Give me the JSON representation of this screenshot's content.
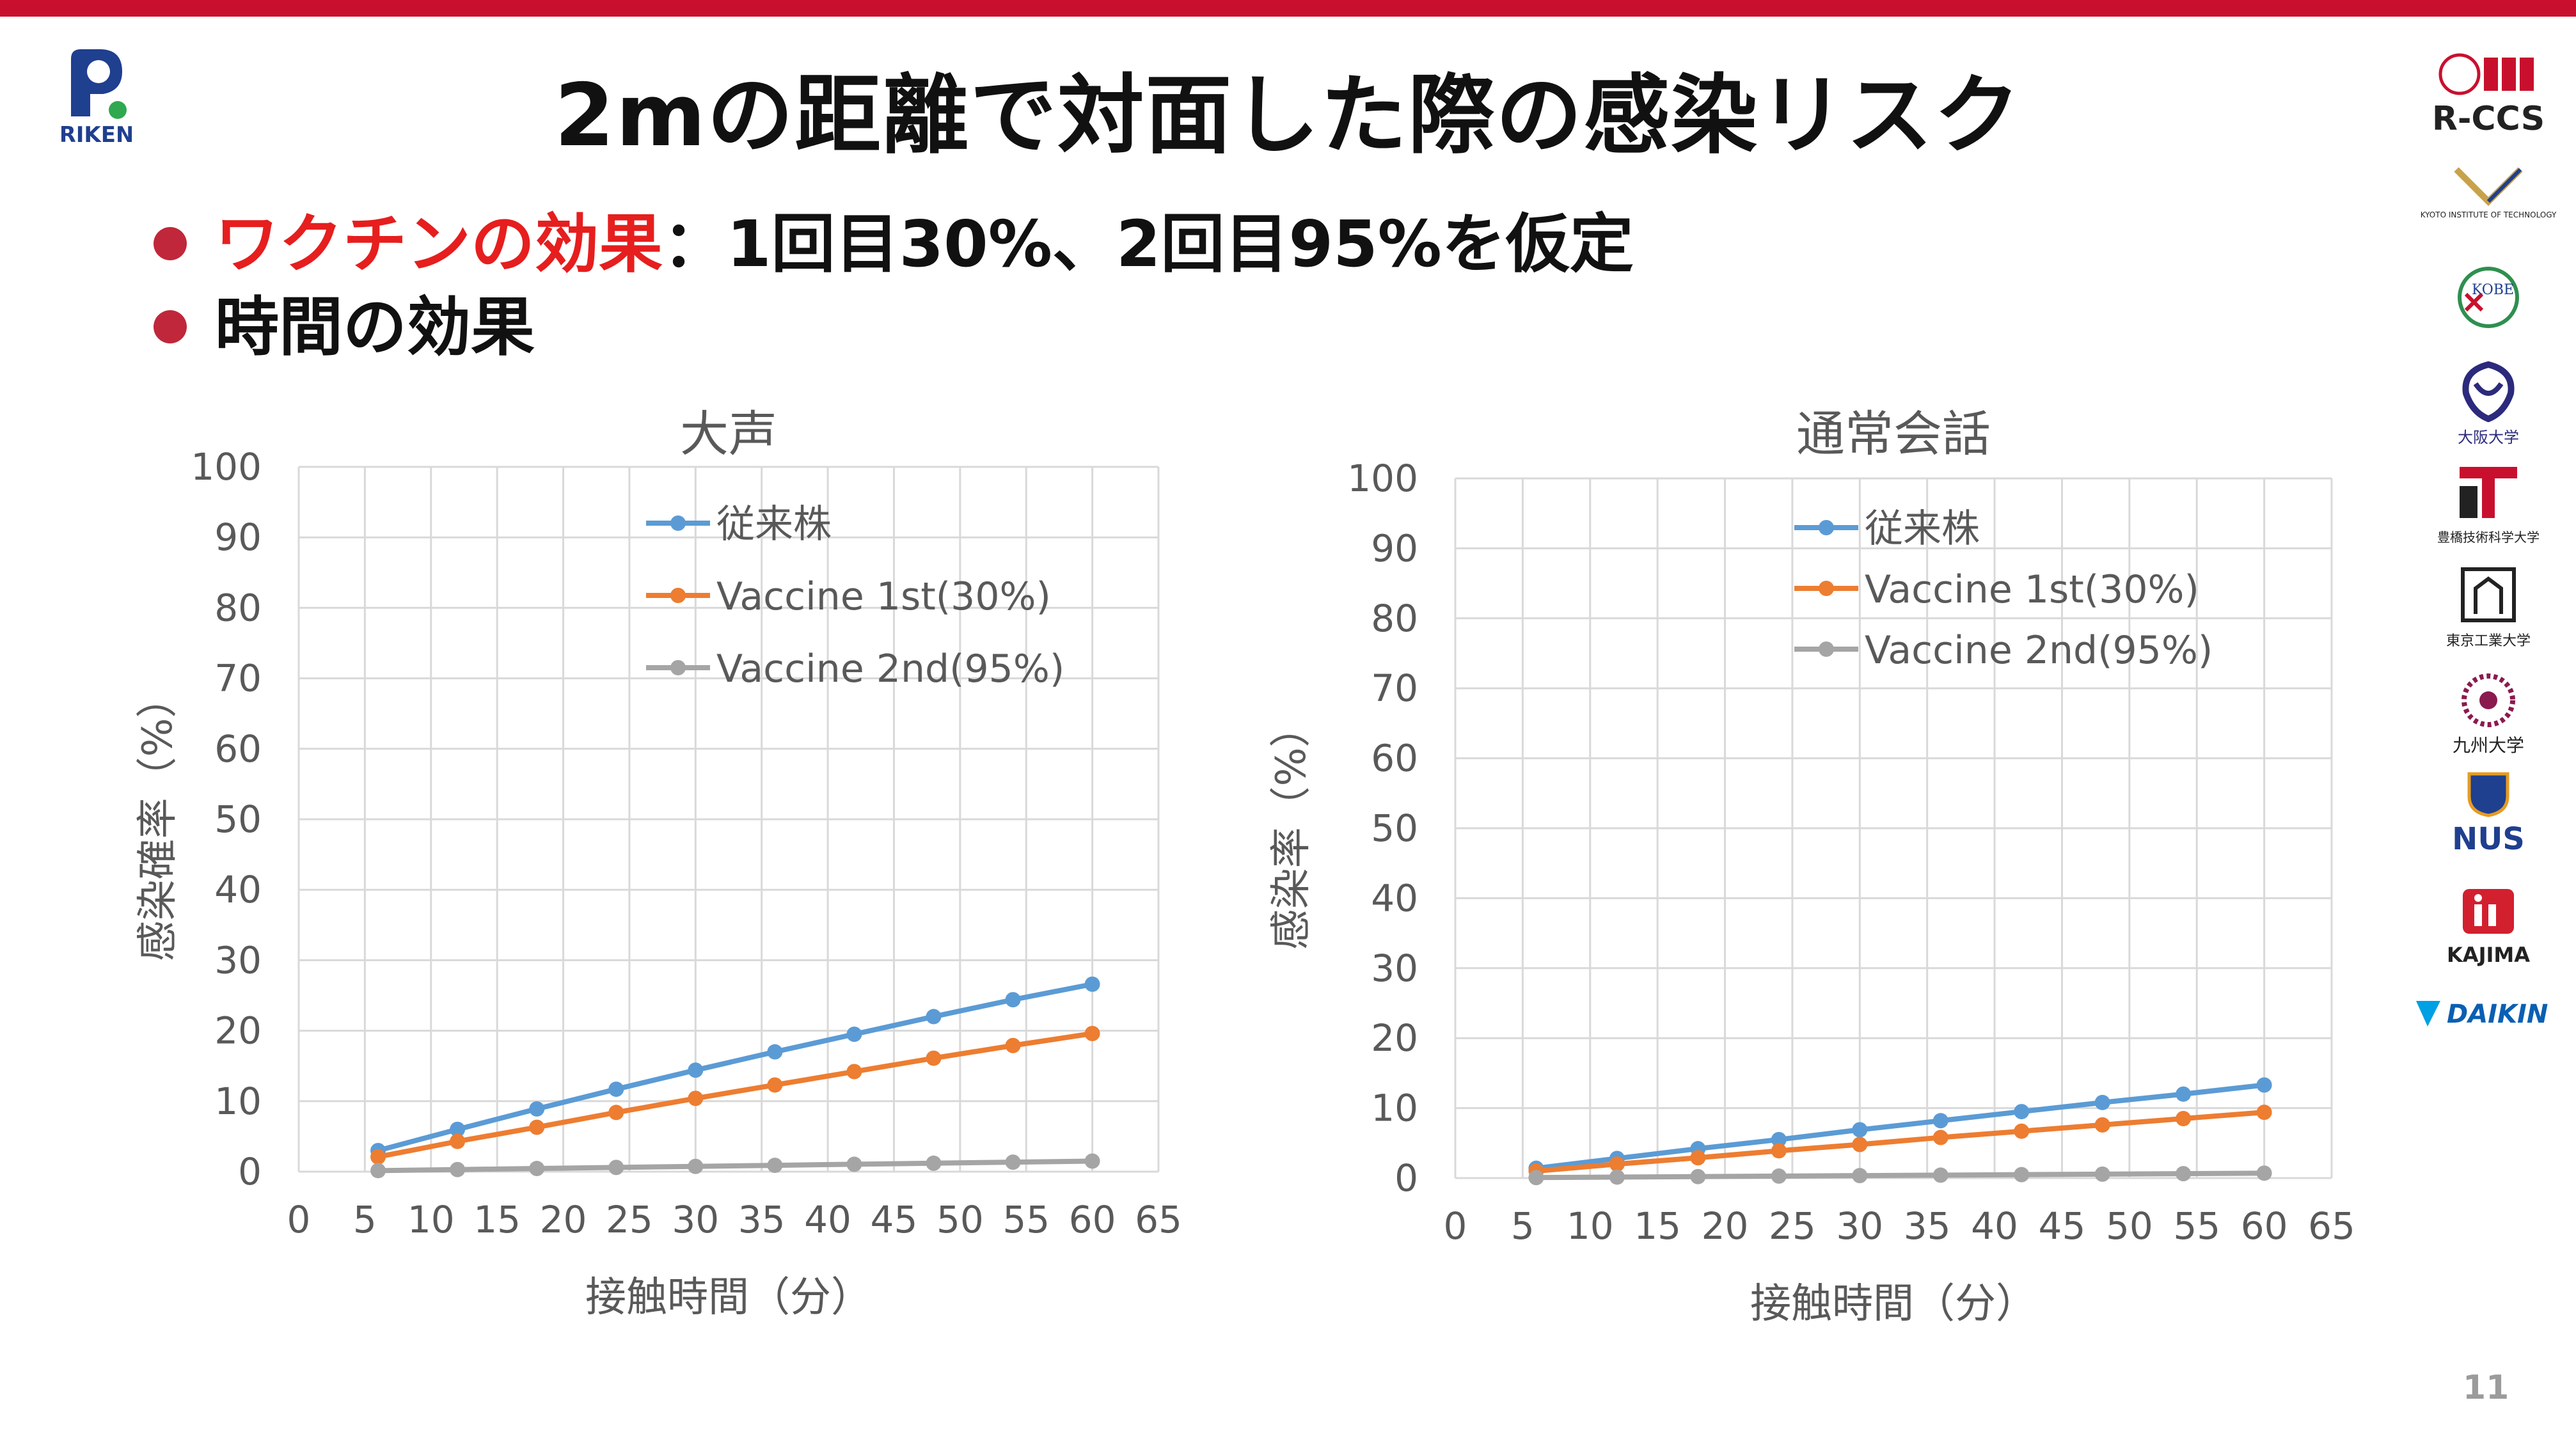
{
  "slide": {
    "title": "2mの距離で対面した際の感染リスク",
    "bullets": [
      {
        "accent": "ワクチンの効果",
        "rest": "：1回目30%、2回目95%を仮定"
      },
      {
        "accent": "",
        "rest": "時間の効果"
      }
    ],
    "page_number": "11",
    "riken_logo_text": "RIKEN"
  },
  "partners": [
    {
      "name": "R-CCS",
      "text": "R-CCS"
    },
    {
      "name": "kyoto-institute-of-technology",
      "text": "KYOTO INSTITUTE OF TECHNOLOGY"
    },
    {
      "name": "kobe-university",
      "text": "KOBE"
    },
    {
      "name": "osaka-university",
      "text": "大阪大学"
    },
    {
      "name": "toyohashi-tech",
      "text": "豊橋技術科学大学"
    },
    {
      "name": "tokyo-tech",
      "text": "東京工業大学"
    },
    {
      "name": "kyushu-university",
      "text": "九州大学"
    },
    {
      "name": "nus",
      "text": "NUS"
    },
    {
      "name": "kajima",
      "text": "KAJIMA"
    },
    {
      "name": "daikin",
      "text": "DAIKIN"
    }
  ],
  "colors": {
    "series": [
      "#5b9bd5",
      "#ed7d31",
      "#a5a5a5"
    ],
    "top_bar": "#c8102e",
    "accent_text": "#e61e1e"
  },
  "chart_data": [
    {
      "type": "line",
      "title": "大声",
      "xlabel": "接触時間（分）",
      "ylabel": "感染確率（%）",
      "xlim": [
        0,
        65
      ],
      "ylim": [
        0,
        100
      ],
      "xticks": [
        "0",
        "5",
        "10",
        "15",
        "20",
        "25",
        "30",
        "35",
        "40",
        "45",
        "50",
        "55",
        "60",
        "65"
      ],
      "yticks": [
        "0",
        "10",
        "20",
        "30",
        "40",
        "50",
        "60",
        "70",
        "80",
        "90",
        "100"
      ],
      "grid": true,
      "legend": "top-center",
      "x": [
        6,
        12,
        18,
        24,
        30,
        36,
        42,
        48,
        54,
        60
      ],
      "series": [
        {
          "name": "従来株",
          "values": [
            3.0,
            6.0,
            8.9,
            11.7,
            14.4,
            17.0,
            19.5,
            22.0,
            24.4,
            26.6
          ]
        },
        {
          "name": "Vaccine 1st(30%)",
          "values": [
            2.1,
            4.3,
            6.3,
            8.4,
            10.4,
            12.3,
            14.2,
            16.1,
            17.9,
            19.6
          ]
        },
        {
          "name": "Vaccine 2nd(95%)",
          "values": [
            0.15,
            0.3,
            0.45,
            0.6,
            0.75,
            0.9,
            1.05,
            1.2,
            1.35,
            1.5
          ]
        }
      ]
    },
    {
      "type": "line",
      "title": "通常会話",
      "xlabel": "接触時間（分）",
      "ylabel": "感染率（%）",
      "xlim": [
        0,
        65
      ],
      "ylim": [
        0,
        100
      ],
      "xticks": [
        "0",
        "5",
        "10",
        "15",
        "20",
        "25",
        "30",
        "35",
        "40",
        "45",
        "50",
        "55",
        "60",
        "65"
      ],
      "yticks": [
        "0",
        "10",
        "20",
        "30",
        "40",
        "50",
        "60",
        "70",
        "80",
        "90",
        "100"
      ],
      "grid": true,
      "legend": "top-center",
      "x": [
        6,
        12,
        18,
        24,
        30,
        36,
        42,
        48,
        54,
        60
      ],
      "series": [
        {
          "name": "従来株",
          "values": [
            1.4,
            2.8,
            4.2,
            5.5,
            6.9,
            8.2,
            9.5,
            10.8,
            12.0,
            13.3
          ]
        },
        {
          "name": "Vaccine 1st(30%)",
          "values": [
            1.0,
            2.0,
            2.9,
            3.9,
            4.8,
            5.8,
            6.7,
            7.6,
            8.5,
            9.4
          ]
        },
        {
          "name": "Vaccine 2nd(95%)",
          "values": [
            0.07,
            0.14,
            0.21,
            0.28,
            0.35,
            0.42,
            0.49,
            0.56,
            0.63,
            0.7
          ]
        }
      ]
    }
  ]
}
